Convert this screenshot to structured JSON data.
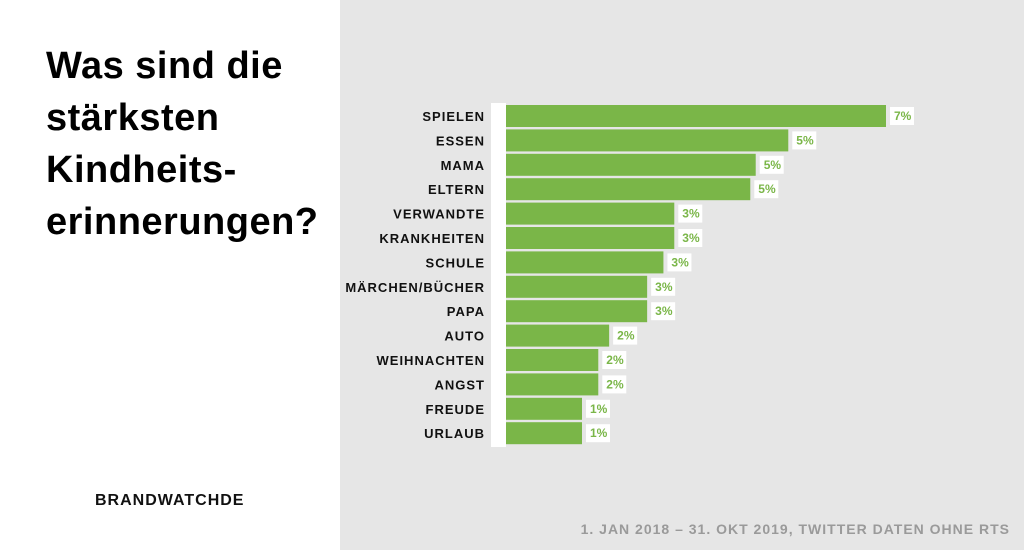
{
  "title_lines": [
    "Was sind die",
    "stärksten",
    "Kindheits-",
    "erinnerungen?"
  ],
  "brand": "BRANDWATCHDE",
  "source": "1. JAN 2018 – 31. OKT 2019, TWITTER DATEN OHNE RTS",
  "colors": {
    "bar": "#7ab648",
    "panel": "#e6e6e6",
    "label_bg": "#ffffff"
  },
  "chart_data": {
    "type": "bar",
    "orientation": "horizontal",
    "title": "Was sind die stärksten Kindheitserinnerungen?",
    "xlabel": "",
    "ylabel": "",
    "categories": [
      "SPIELEN",
      "ESSEN",
      "MAMA",
      "ELTERN",
      "VERWANDTE",
      "KRANKHEITEN",
      "SCHULE",
      "MÄRCHEN/BÜCHER",
      "PAPA",
      "AUTO",
      "WEIHNACHTEN",
      "ANGST",
      "FREUDE",
      "URLAUB"
    ],
    "values": [
      7.0,
      5.2,
      4.6,
      4.5,
      3.1,
      3.1,
      2.9,
      2.6,
      2.6,
      1.9,
      1.7,
      1.7,
      1.4,
      1.4
    ],
    "value_labels": [
      "7%",
      "5%",
      "5%",
      "5%",
      "3%",
      "3%",
      "3%",
      "3%",
      "3%",
      "2%",
      "2%",
      "2%",
      "1%",
      "1%"
    ],
    "xlim": [
      0,
      7
    ],
    "unit": "%",
    "grid": false,
    "legend": "none"
  }
}
